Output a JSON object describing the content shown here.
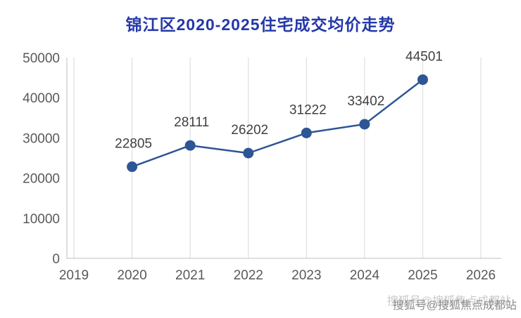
{
  "chart_data": {
    "type": "line",
    "title": "锦江区2020-2025住宅成交均价走势",
    "categories": [
      "2020",
      "2021",
      "2022",
      "2023",
      "2024",
      "2025"
    ],
    "values": [
      22805,
      28111,
      26202,
      31222,
      33402,
      44501
    ],
    "x_ticks": [
      "2019",
      "2020",
      "2021",
      "2022",
      "2023",
      "2024",
      "2025",
      "2026"
    ],
    "y_ticks": [
      0,
      10000,
      20000,
      30000,
      40000,
      50000
    ],
    "ylim": [
      0,
      50000
    ],
    "grid": "vertical",
    "legend": "none",
    "colors": {
      "line": "#2e5596",
      "marker": "#2e5596",
      "title": "#2438a8",
      "axis_label": "#595959",
      "data_label": "#404040",
      "gridline": "#d9d9d9",
      "axis_line": "#bfbfbf"
    }
  },
  "watermark": {
    "text": "搜狐号@搜狐焦点成都站"
  }
}
